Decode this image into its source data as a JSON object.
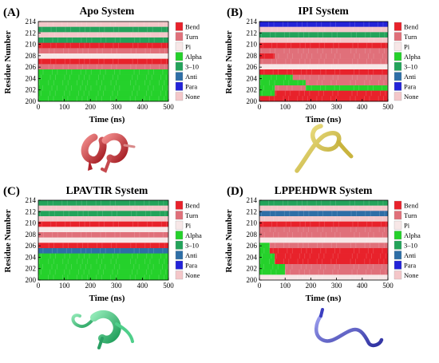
{
  "chart_data": [
    {
      "type": "heatmap",
      "panel_label": "(A)",
      "title": "Apo System",
      "xlabel": "Time (ns)",
      "ylabel": "Residue Number",
      "xlim": [
        0,
        500
      ],
      "ylim": [
        200,
        214
      ],
      "x_ticks": [
        "0",
        "100",
        "200",
        "300",
        "400",
        "500"
      ],
      "y_ticks": [
        "200",
        "202",
        "204",
        "206",
        "208",
        "210",
        "212",
        "214"
      ],
      "residues": [
        {
          "residue": 214,
          "states": [
            {
              "t0": 0,
              "t1": 500,
              "state": "None"
            }
          ]
        },
        {
          "residue": 213,
          "states": [
            {
              "t0": 0,
              "t1": 500,
              "state": "3-10"
            }
          ]
        },
        {
          "residue": 212,
          "states": [
            {
              "t0": 0,
              "t1": 500,
              "state": "None"
            }
          ]
        },
        {
          "residue": 211,
          "states": [
            {
              "t0": 0,
              "t1": 500,
              "state": "3-10"
            }
          ]
        },
        {
          "residue": 210,
          "states": [
            {
              "t0": 0,
              "t1": 500,
              "state": "Bend"
            }
          ]
        },
        {
          "residue": 209,
          "states": [
            {
              "t0": 0,
              "t1": 500,
              "state": "Turn"
            }
          ]
        },
        {
          "residue": 208,
          "states": [
            {
              "t0": 0,
              "t1": 500,
              "state": "Pi"
            }
          ]
        },
        {
          "residue": 207,
          "states": [
            {
              "t0": 0,
              "t1": 500,
              "state": "Bend"
            }
          ]
        },
        {
          "residue": 206,
          "states": [
            {
              "t0": 0,
              "t1": 500,
              "state": "Turn"
            }
          ]
        },
        {
          "residue": 205,
          "states": [
            {
              "t0": 0,
              "t1": 500,
              "state": "Alpha"
            }
          ]
        },
        {
          "residue": 204,
          "states": [
            {
              "t0": 0,
              "t1": 500,
              "state": "Alpha"
            }
          ]
        },
        {
          "residue": 203,
          "states": [
            {
              "t0": 0,
              "t1": 500,
              "state": "Alpha"
            }
          ]
        },
        {
          "residue": 202,
          "states": [
            {
              "t0": 0,
              "t1": 500,
              "state": "Alpha"
            }
          ]
        },
        {
          "residue": 201,
          "states": [
            {
              "t0": 0,
              "t1": 500,
              "state": "Alpha"
            }
          ]
        },
        {
          "residue": 200,
          "states": [
            {
              "t0": 0,
              "t1": 500,
              "state": "Alpha"
            }
          ]
        }
      ]
    },
    {
      "type": "heatmap",
      "panel_label": "(B)",
      "title": "IPI System",
      "xlabel": "Time (ns)",
      "ylabel": "Residue Number",
      "xlim": [
        0,
        500
      ],
      "ylim": [
        200,
        214
      ],
      "x_ticks": [
        "0",
        "100",
        "200",
        "300",
        "400",
        "500"
      ],
      "y_ticks": [
        "200",
        "202",
        "204",
        "206",
        "208",
        "210",
        "212",
        "214"
      ],
      "residues": [
        {
          "residue": 214,
          "states": [
            {
              "t0": 0,
              "t1": 500,
              "state": "Para"
            }
          ]
        },
        {
          "residue": 213,
          "states": [
            {
              "t0": 0,
              "t1": 500,
              "state": "None"
            }
          ]
        },
        {
          "residue": 212,
          "states": [
            {
              "t0": 0,
              "t1": 500,
              "state": "3-10"
            }
          ]
        },
        {
          "residue": 211,
          "states": [
            {
              "t0": 0,
              "t1": 500,
              "state": "None"
            }
          ]
        },
        {
          "residue": 210,
          "states": [
            {
              "t0": 0,
              "t1": 500,
              "state": "Bend"
            }
          ]
        },
        {
          "residue": 209,
          "states": [
            {
              "t0": 0,
              "t1": 500,
              "state": "Turn"
            }
          ]
        },
        {
          "residue": 208,
          "states": [
            {
              "t0": 0,
              "t1": 60,
              "state": "Bend"
            },
            {
              "t0": 60,
              "t1": 500,
              "state": "Turn"
            }
          ]
        },
        {
          "residue": 207,
          "states": [
            {
              "t0": 0,
              "t1": 500,
              "state": "Turn"
            }
          ]
        },
        {
          "residue": 206,
          "states": [
            {
              "t0": 0,
              "t1": 500,
              "state": "Pi"
            }
          ]
        },
        {
          "residue": 205,
          "states": [
            {
              "t0": 0,
              "t1": 500,
              "state": "Bend"
            }
          ]
        },
        {
          "residue": 204,
          "states": [
            {
              "t0": 0,
              "t1": 130,
              "state": "Alpha"
            },
            {
              "t0": 130,
              "t1": 500,
              "state": "Turn"
            }
          ]
        },
        {
          "residue": 203,
          "states": [
            {
              "t0": 0,
              "t1": 180,
              "state": "Alpha"
            },
            {
              "t0": 180,
              "t1": 500,
              "state": "Turn"
            }
          ]
        },
        {
          "residue": 202,
          "states": [
            {
              "t0": 0,
              "t1": 60,
              "state": "Alpha"
            },
            {
              "t0": 60,
              "t1": 180,
              "state": "Turn"
            },
            {
              "t0": 180,
              "t1": 500,
              "state": "Alpha"
            }
          ]
        },
        {
          "residue": 201,
          "states": [
            {
              "t0": 0,
              "t1": 60,
              "state": "Alpha"
            },
            {
              "t0": 60,
              "t1": 500,
              "state": "Bend"
            }
          ]
        },
        {
          "residue": 200,
          "states": [
            {
              "t0": 0,
              "t1": 500,
              "state": "Bend"
            }
          ]
        }
      ]
    },
    {
      "type": "heatmap",
      "panel_label": "(C)",
      "title": "LPAVTIR System",
      "xlabel": "Time (ns)",
      "ylabel": "Residue Number",
      "xlim": [
        0,
        500
      ],
      "ylim": [
        200,
        214
      ],
      "x_ticks": [
        "0",
        "100",
        "200",
        "300",
        "400",
        "500"
      ],
      "y_ticks": [
        "200",
        "202",
        "204",
        "206",
        "208",
        "210",
        "212",
        "214"
      ],
      "residues": [
        {
          "residue": 214,
          "states": [
            {
              "t0": 0,
              "t1": 500,
              "state": "3-10"
            }
          ]
        },
        {
          "residue": 213,
          "states": [
            {
              "t0": 0,
              "t1": 500,
              "state": "None"
            }
          ]
        },
        {
          "residue": 212,
          "states": [
            {
              "t0": 0,
              "t1": 500,
              "state": "3-10"
            }
          ]
        },
        {
          "residue": 211,
          "states": [
            {
              "t0": 0,
              "t1": 500,
              "state": "None"
            }
          ]
        },
        {
          "residue": 210,
          "states": [
            {
              "t0": 0,
              "t1": 500,
              "state": "Bend"
            }
          ]
        },
        {
          "residue": 209,
          "states": [
            {
              "t0": 0,
              "t1": 500,
              "state": "Pi"
            }
          ]
        },
        {
          "residue": 208,
          "states": [
            {
              "t0": 0,
              "t1": 500,
              "state": "Turn"
            }
          ]
        },
        {
          "residue": 207,
          "states": [
            {
              "t0": 0,
              "t1": 500,
              "state": "Pi"
            }
          ]
        },
        {
          "residue": 206,
          "states": [
            {
              "t0": 0,
              "t1": 500,
              "state": "Bend"
            }
          ]
        },
        {
          "residue": 205,
          "states": [
            {
              "t0": 0,
              "t1": 500,
              "state": "Anti"
            }
          ]
        },
        {
          "residue": 204,
          "states": [
            {
              "t0": 0,
              "t1": 500,
              "state": "Alpha"
            }
          ]
        },
        {
          "residue": 203,
          "states": [
            {
              "t0": 0,
              "t1": 500,
              "state": "Alpha"
            }
          ]
        },
        {
          "residue": 202,
          "states": [
            {
              "t0": 0,
              "t1": 500,
              "state": "Alpha"
            }
          ]
        },
        {
          "residue": 201,
          "states": [
            {
              "t0": 0,
              "t1": 500,
              "state": "Alpha"
            }
          ]
        },
        {
          "residue": 200,
          "states": [
            {
              "t0": 0,
              "t1": 500,
              "state": "Alpha"
            }
          ]
        }
      ]
    },
    {
      "type": "heatmap",
      "panel_label": "(D)",
      "title": "LPPEHDWR System",
      "xlabel": "Time (ns)",
      "ylabel": "Residue Number",
      "xlim": [
        0,
        500
      ],
      "ylim": [
        200,
        214
      ],
      "x_ticks": [
        "0",
        "100",
        "200",
        "300",
        "400",
        "500"
      ],
      "y_ticks": [
        "200",
        "202",
        "204",
        "206",
        "208",
        "210",
        "212",
        "214"
      ],
      "residues": [
        {
          "residue": 214,
          "states": [
            {
              "t0": 0,
              "t1": 500,
              "state": "3-10"
            }
          ]
        },
        {
          "residue": 213,
          "states": [
            {
              "t0": 0,
              "t1": 500,
              "state": "None"
            }
          ]
        },
        {
          "residue": 212,
          "states": [
            {
              "t0": 0,
              "t1": 500,
              "state": "Anti"
            }
          ]
        },
        {
          "residue": 211,
          "states": [
            {
              "t0": 0,
              "t1": 500,
              "state": "None"
            }
          ]
        },
        {
          "residue": 210,
          "states": [
            {
              "t0": 0,
              "t1": 500,
              "state": "Bend"
            }
          ]
        },
        {
          "residue": 209,
          "states": [
            {
              "t0": 0,
              "t1": 500,
              "state": "Turn"
            }
          ]
        },
        {
          "residue": 208,
          "states": [
            {
              "t0": 0,
              "t1": 500,
              "state": "Turn"
            }
          ]
        },
        {
          "residue": 207,
          "states": [
            {
              "t0": 0,
              "t1": 500,
              "state": "Pi"
            }
          ]
        },
        {
          "residue": 206,
          "states": [
            {
              "t0": 0,
              "t1": 40,
              "state": "Alpha"
            },
            {
              "t0": 40,
              "t1": 500,
              "state": "Turn"
            }
          ]
        },
        {
          "residue": 205,
          "states": [
            {
              "t0": 0,
              "t1": 40,
              "state": "Alpha"
            },
            {
              "t0": 40,
              "t1": 500,
              "state": "Bend"
            }
          ]
        },
        {
          "residue": 204,
          "states": [
            {
              "t0": 0,
              "t1": 60,
              "state": "Alpha"
            },
            {
              "t0": 60,
              "t1": 500,
              "state": "Bend"
            }
          ]
        },
        {
          "residue": 203,
          "states": [
            {
              "t0": 0,
              "t1": 60,
              "state": "Alpha"
            },
            {
              "t0": 60,
              "t1": 500,
              "state": "Bend"
            }
          ]
        },
        {
          "residue": 202,
          "states": [
            {
              "t0": 0,
              "t1": 100,
              "state": "Alpha"
            },
            {
              "t0": 100,
              "t1": 500,
              "state": "Turn"
            }
          ]
        },
        {
          "residue": 201,
          "states": [
            {
              "t0": 0,
              "t1": 100,
              "state": "Alpha"
            },
            {
              "t0": 100,
              "t1": 500,
              "state": "Turn"
            }
          ]
        },
        {
          "residue": 200,
          "states": [
            {
              "t0": 0,
              "t1": 500,
              "state": "Pi"
            }
          ]
        }
      ]
    }
  ],
  "legend": [
    {
      "label": "Bend",
      "color": "#e8222b"
    },
    {
      "label": "Turn",
      "color": "#e0707a"
    },
    {
      "label": "Pi",
      "color": "#f7e7e7"
    },
    {
      "label": "Alpha",
      "color": "#25d12b"
    },
    {
      "label": "3–10",
      "color": "#23a35a"
    },
    {
      "label": "Anti",
      "color": "#2e6ea6"
    },
    {
      "label": "Para",
      "color": "#2323d8"
    },
    {
      "label": "None",
      "color": "#f4c7c9"
    }
  ],
  "structures": [
    {
      "name": "apo-helix-structure",
      "color": "#d22a30"
    },
    {
      "name": "ipi-coil-structure",
      "color": "#e6d45b"
    },
    {
      "name": "lpavtir-helix-structure",
      "color": "#2fc77a"
    },
    {
      "name": "lppehdwr-coil-structure",
      "color": "#4a4dc8"
    }
  ]
}
